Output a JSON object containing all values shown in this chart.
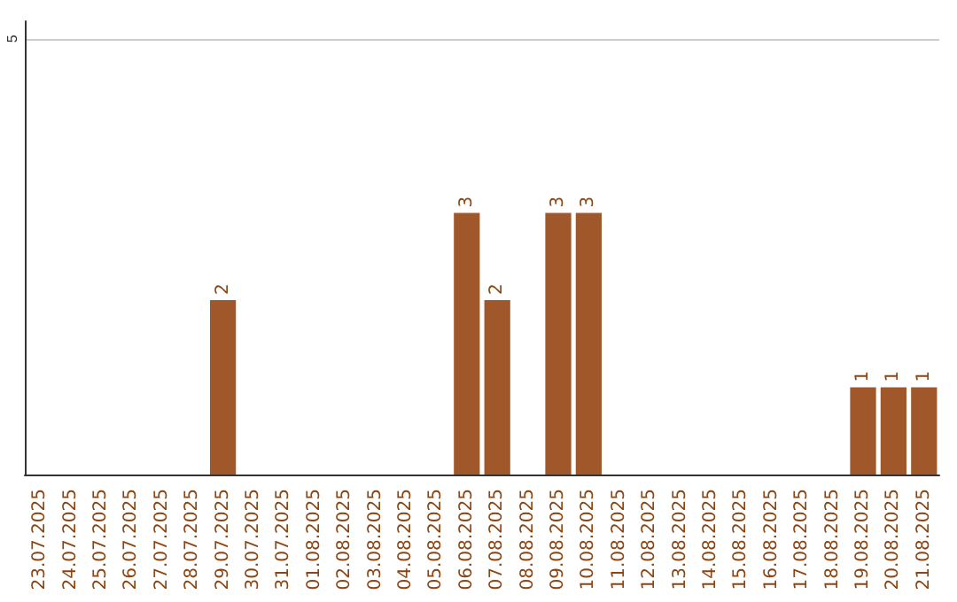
{
  "chart_data": {
    "type": "bar",
    "categories": [
      "23.07.2025",
      "24.07.2025",
      "25.07.2025",
      "26.07.2025",
      "27.07.2025",
      "28.07.2025",
      "29.07.2025",
      "30.07.2025",
      "31.07.2025",
      "01.08.2025",
      "02.08.2025",
      "03.08.2025",
      "04.08.2025",
      "05.08.2025",
      "06.08.2025",
      "07.08.2025",
      "08.08.2025",
      "09.08.2025",
      "10.08.2025",
      "11.08.2025",
      "12.08.2025",
      "13.08.2025",
      "14.08.2025",
      "15.08.2025",
      "16.08.2025",
      "17.08.2025",
      "18.08.2025",
      "19.08.2025",
      "20.08.2025",
      "21.08.2025"
    ],
    "values": [
      0,
      0,
      0,
      0,
      0,
      0,
      2,
      0,
      0,
      0,
      0,
      0,
      0,
      0,
      3,
      2,
      0,
      3,
      3,
      0,
      0,
      0,
      0,
      0,
      0,
      0,
      0,
      1,
      1,
      1
    ],
    "value_labels": [
      null,
      null,
      null,
      null,
      null,
      null,
      "2",
      null,
      null,
      null,
      null,
      null,
      null,
      null,
      "3",
      "2",
      null,
      "3",
      "3",
      null,
      null,
      null,
      null,
      null,
      null,
      null,
      null,
      "1",
      "1",
      "1"
    ],
    "color": "#a0572a",
    "ylim": [
      0,
      5.2
    ],
    "yticks": [
      5
    ],
    "grid": "y"
  }
}
